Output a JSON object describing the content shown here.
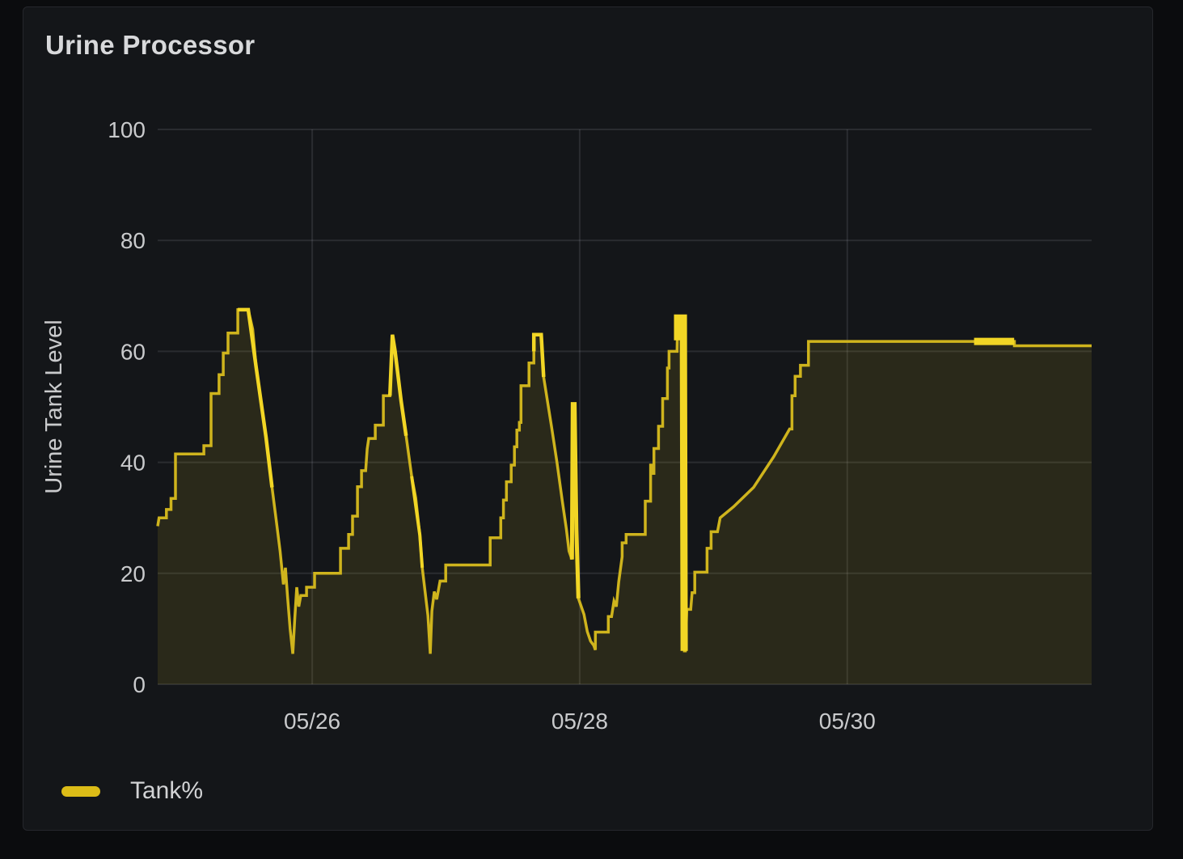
{
  "page": {
    "background": "#0b0c0e"
  },
  "panel": {
    "title": "Urine Processor",
    "background": "#141619",
    "border_color": "#25272c",
    "title_color": "#d8d9db"
  },
  "legend": {
    "label": "Tank%",
    "swatch_color": "#dcbc17",
    "label_color": "#d2d3d5"
  },
  "chart_data": {
    "type": "area",
    "title": "Urine Processor",
    "xlabel": "",
    "ylabel": "Urine Tank Level",
    "x_unit": "days since 05/24 00:00",
    "xlim": [
      0.845,
      7.827
    ],
    "ylim": [
      0,
      100
    ],
    "grid": true,
    "legend_position": "bottom-left",
    "grid_color": "rgba(204,204,220,0.12)",
    "tick_color": "#c9cacc",
    "axis_label_color": "#c9cacc",
    "y_ticks": [
      {
        "value": 0,
        "label": "0"
      },
      {
        "value": 20,
        "label": "20"
      },
      {
        "value": 40,
        "label": "40"
      },
      {
        "value": 60,
        "label": "60"
      },
      {
        "value": 80,
        "label": "80"
      },
      {
        "value": 100,
        "label": "100"
      }
    ],
    "x_ticks": [
      {
        "t": 2,
        "label": "05/26"
      },
      {
        "t": 4,
        "label": "05/28"
      },
      {
        "t": 6,
        "label": "05/30"
      }
    ],
    "series": [
      {
        "name": "Tank%",
        "line_color": "#cfb41d",
        "highlight_color": "#f2d625",
        "fill_color": "#e8cc20",
        "fill_opacity": 0.11,
        "line_width": 3.5,
        "points": [
          [
            0.845,
            28.5
          ],
          [
            0.855,
            30
          ],
          [
            0.91,
            30
          ],
          [
            0.91,
            31.5
          ],
          [
            0.945,
            31.5
          ],
          [
            0.945,
            33.5
          ],
          [
            0.978,
            33.5
          ],
          [
            0.978,
            41.5
          ],
          [
            1.19,
            41.5
          ],
          [
            1.19,
            43
          ],
          [
            1.244,
            43
          ],
          [
            1.244,
            52.4
          ],
          [
            1.304,
            52.4
          ],
          [
            1.304,
            55.8
          ],
          [
            1.335,
            55.8
          ],
          [
            1.335,
            59.7
          ],
          [
            1.371,
            59.7
          ],
          [
            1.371,
            63.3
          ],
          [
            1.444,
            63.3
          ],
          [
            1.444,
            67.5
          ],
          [
            1.522,
            67.5
          ],
          [
            1.555,
            64
          ],
          [
            1.582,
            57
          ],
          [
            1.61,
            52
          ],
          [
            1.655,
            44.5
          ],
          [
            1.7,
            35.5
          ],
          [
            1.73,
            29.8
          ],
          [
            1.76,
            24
          ],
          [
            1.785,
            18
          ],
          [
            1.8,
            21
          ],
          [
            1.815,
            16
          ],
          [
            1.835,
            10
          ],
          [
            1.855,
            5.5
          ],
          [
            1.87,
            12
          ],
          [
            1.885,
            17.5
          ],
          [
            1.9,
            14
          ],
          [
            1.915,
            16
          ],
          [
            1.958,
            16
          ],
          [
            1.958,
            17.5
          ],
          [
            2.018,
            17.5
          ],
          [
            2.018,
            20
          ],
          [
            2.212,
            20
          ],
          [
            2.212,
            24.5
          ],
          [
            2.272,
            24.5
          ],
          [
            2.272,
            27
          ],
          [
            2.302,
            27
          ],
          [
            2.302,
            30.3
          ],
          [
            2.339,
            30.3
          ],
          [
            2.339,
            35.6
          ],
          [
            2.369,
            35.6
          ],
          [
            2.369,
            38.5
          ],
          [
            2.4,
            38.5
          ],
          [
            2.411,
            42.4
          ],
          [
            2.423,
            44.3
          ],
          [
            2.472,
            44.3
          ],
          [
            2.472,
            46.7
          ],
          [
            2.532,
            46.7
          ],
          [
            2.532,
            52
          ],
          [
            2.581,
            52
          ],
          [
            2.6,
            63
          ],
          [
            2.62,
            60
          ],
          [
            2.665,
            51
          ],
          [
            2.702,
            44.8
          ],
          [
            2.744,
            37.5
          ],
          [
            2.774,
            33.6
          ],
          [
            2.805,
            26.9
          ],
          [
            2.823,
            21
          ],
          [
            2.865,
            12.4
          ],
          [
            2.883,
            5.5
          ],
          [
            2.895,
            13.2
          ],
          [
            2.913,
            16.7
          ],
          [
            2.931,
            15.3
          ],
          [
            2.956,
            18.6
          ],
          [
            2.998,
            18.6
          ],
          [
            2.998,
            21.5
          ],
          [
            3.331,
            21.5
          ],
          [
            3.331,
            26.4
          ],
          [
            3.41,
            26.4
          ],
          [
            3.41,
            30
          ],
          [
            3.43,
            30
          ],
          [
            3.43,
            33.2
          ],
          [
            3.452,
            33.2
          ],
          [
            3.452,
            36.5
          ],
          [
            3.488,
            36.5
          ],
          [
            3.488,
            39.5
          ],
          [
            3.512,
            39.5
          ],
          [
            3.512,
            42.8
          ],
          [
            3.53,
            42.8
          ],
          [
            3.53,
            45.8
          ],
          [
            3.549,
            45.8
          ],
          [
            3.549,
            47.2
          ],
          [
            3.561,
            47.2
          ],
          [
            3.561,
            53.8
          ],
          [
            3.621,
            53.8
          ],
          [
            3.621,
            57.9
          ],
          [
            3.657,
            57.9
          ],
          [
            3.657,
            63
          ],
          [
            3.712,
            63
          ],
          [
            3.73,
            55.4
          ],
          [
            3.79,
            46.3
          ],
          [
            3.83,
            40
          ],
          [
            3.87,
            33
          ],
          [
            3.9,
            28
          ],
          [
            3.92,
            24
          ],
          [
            3.942,
            22.5
          ],
          [
            3.948,
            50.5
          ],
          [
            3.962,
            50.5
          ],
          [
            3.975,
            28
          ],
          [
            3.99,
            15.5
          ],
          [
            4.032,
            12.6
          ],
          [
            4.057,
            9.5
          ],
          [
            4.081,
            7.8
          ],
          [
            4.105,
            7
          ],
          [
            4.117,
            6.2
          ],
          [
            4.117,
            9.4
          ],
          [
            4.214,
            9.4
          ],
          [
            4.214,
            12.2
          ],
          [
            4.238,
            12.2
          ],
          [
            4.256,
            15
          ],
          [
            4.274,
            14
          ],
          [
            4.292,
            18.5
          ],
          [
            4.317,
            23
          ],
          [
            4.317,
            25.5
          ],
          [
            4.347,
            25.5
          ],
          [
            4.347,
            27
          ],
          [
            4.49,
            27
          ],
          [
            4.49,
            33
          ],
          [
            4.53,
            33
          ],
          [
            4.53,
            39.5
          ],
          [
            4.545,
            39.5
          ],
          [
            4.545,
            38
          ],
          [
            4.555,
            38
          ],
          [
            4.555,
            42.5
          ],
          [
            4.589,
            42.5
          ],
          [
            4.589,
            46.5
          ],
          [
            4.62,
            46.5
          ],
          [
            4.62,
            51.5
          ],
          [
            4.656,
            51.5
          ],
          [
            4.656,
            57
          ],
          [
            4.668,
            57
          ],
          [
            4.668,
            60
          ],
          [
            4.728,
            60
          ],
          [
            4.732,
            66
          ],
          [
            4.777,
            66
          ],
          [
            4.783,
            6
          ],
          [
            4.79,
            6
          ],
          [
            4.8,
            13.5
          ],
          [
            4.83,
            13.5
          ],
          [
            4.84,
            16.5
          ],
          [
            4.86,
            16.5
          ],
          [
            4.86,
            20.2
          ],
          [
            4.952,
            20.2
          ],
          [
            4.952,
            24.5
          ],
          [
            4.982,
            24.5
          ],
          [
            4.982,
            27.5
          ],
          [
            5.03,
            27.5
          ],
          [
            5.05,
            30
          ],
          [
            5.15,
            32
          ],
          [
            5.3,
            35.5
          ],
          [
            5.45,
            41
          ],
          [
            5.569,
            46
          ],
          [
            5.587,
            46
          ],
          [
            5.587,
            52
          ],
          [
            5.61,
            52
          ],
          [
            5.61,
            55.5
          ],
          [
            5.65,
            55.5
          ],
          [
            5.65,
            57.5
          ],
          [
            5.71,
            57.5
          ],
          [
            5.71,
            61.8
          ],
          [
            6.948,
            61.8
          ],
          [
            7.25,
            61.8
          ],
          [
            7.25,
            61
          ],
          [
            7.827,
            61
          ]
        ],
        "highlight_segments": [
          {
            "width": 4.5,
            "points": [
              [
                1.444,
                67.5
              ],
              [
                1.522,
                67.5
              ],
              [
                1.582,
                57
              ],
              [
                1.655,
                44.5
              ],
              [
                1.7,
                35.5
              ]
            ]
          },
          {
            "width": 4.5,
            "points": [
              [
                2.581,
                52
              ],
              [
                2.6,
                63
              ],
              [
                2.62,
                60
              ],
              [
                2.665,
                51
              ],
              [
                2.702,
                44.8
              ]
            ]
          },
          {
            "width": 4.0,
            "points": [
              [
                2.744,
                37.5
              ],
              [
                2.805,
                26.9
              ],
              [
                2.823,
                21
              ]
            ]
          },
          {
            "width": 4.5,
            "points": [
              [
                3.657,
                60
              ],
              [
                3.657,
                63
              ],
              [
                3.712,
                63
              ],
              [
                3.73,
                55.4
              ]
            ]
          },
          {
            "width": 5.0,
            "points": [
              [
                3.942,
                22.5
              ],
              [
                3.948,
                50.5
              ],
              [
                3.962,
                50.5
              ],
              [
                3.975,
                28
              ],
              [
                3.99,
                15.5
              ]
            ]
          },
          {
            "width": 9.0,
            "points": [
              [
                4.732,
                62
              ],
              [
                4.732,
                66
              ],
              [
                4.775,
                66
              ],
              [
                4.781,
                6
              ]
            ]
          },
          {
            "width": 9.0,
            "points": [
              [
                6.948,
                61.8
              ],
              [
                7.248,
                61.8
              ]
            ]
          }
        ]
      }
    ]
  }
}
